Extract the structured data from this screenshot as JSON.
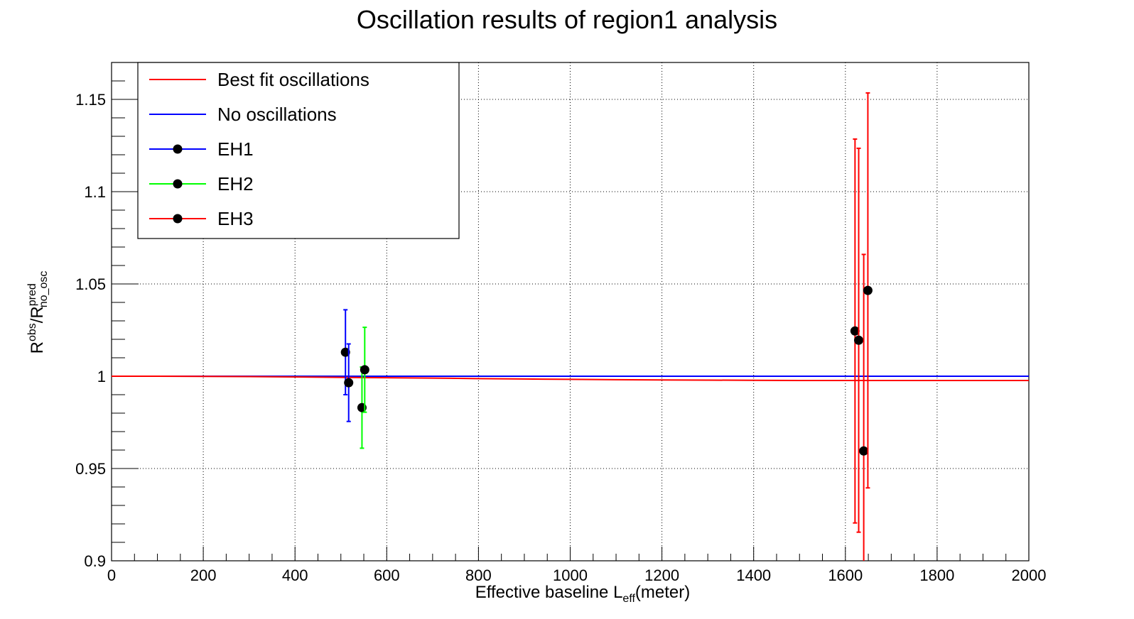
{
  "chart_data": {
    "type": "scatter",
    "title": "Oscillation results of region1 analysis",
    "xlabel": {
      "main": "Effective baseline L",
      "sub": "eff",
      "suffix": "(meter)"
    },
    "ylabel": {
      "r1": "R",
      "sup1": "obs",
      "slash": "/R",
      "sup2": "pred",
      "sub2": "no_osc"
    },
    "xlim": [
      0,
      2000
    ],
    "ylim": [
      0.9,
      1.17
    ],
    "x_ticks": [
      0,
      200,
      400,
      600,
      800,
      1000,
      1200,
      1400,
      1600,
      1800,
      2000
    ],
    "x_tick_labels": [
      "0",
      "200",
      "400",
      "600",
      "800",
      "1000",
      "1200",
      "1400",
      "1600",
      "1800",
      "2000"
    ],
    "y_ticks": [
      0.9,
      0.95,
      1,
      1.05,
      1.1,
      1.15
    ],
    "y_tick_labels": [
      "0.9",
      "0.95",
      "1",
      "1.05",
      "1.1",
      "1.15"
    ],
    "grid": true,
    "legend_position": "top-left",
    "legend": [
      {
        "label": "Best fit oscillations",
        "color": "#ff0000",
        "marker": false
      },
      {
        "label": "No oscillations",
        "color": "#0000ff",
        "marker": false
      },
      {
        "label": "EH1",
        "color": "#0000ff",
        "marker": true
      },
      {
        "label": "EH2",
        "color": "#00ff00",
        "marker": true
      },
      {
        "label": "EH3",
        "color": "#ff0000",
        "marker": true
      }
    ],
    "lines": [
      {
        "name": "No oscillations",
        "color": "#0000ff",
        "x": [
          0,
          2000
        ],
        "y": [
          1.0,
          1.0
        ]
      },
      {
        "name": "Best fit oscillations",
        "color": "#ff0000",
        "x": [
          0,
          100,
          200,
          300,
          400,
          500,
          600,
          700,
          800,
          900,
          1000,
          1100,
          1200,
          1300,
          1400,
          1500,
          1600,
          1700,
          1800,
          1900,
          2000
        ],
        "y": [
          1.0,
          1.0,
          0.9999,
          0.9998,
          0.9996,
          0.9994,
          0.9992,
          0.999,
          0.9987,
          0.9985,
          0.9983,
          0.9981,
          0.998,
          0.9979,
          0.9978,
          0.9977,
          0.9977,
          0.9977,
          0.9977,
          0.9977,
          0.9977
        ]
      }
    ],
    "series": [
      {
        "name": "EH1",
        "color": "#0000ff",
        "points": [
          {
            "x": 510,
            "y": 1.013,
            "err": 0.023
          },
          {
            "x": 517,
            "y": 0.9965,
            "err": 0.021
          }
        ]
      },
      {
        "name": "EH2",
        "color": "#00ff00",
        "points": [
          {
            "x": 546,
            "y": 0.983,
            "err": 0.022
          },
          {
            "x": 552,
            "y": 1.0035,
            "err": 0.023
          }
        ]
      },
      {
        "name": "EH3",
        "color": "#ff0000",
        "points": [
          {
            "x": 1621,
            "y": 1.0245,
            "err": 0.104
          },
          {
            "x": 1629,
            "y": 1.0195,
            "err": 0.104
          },
          {
            "x": 1640,
            "y": 0.9595,
            "err": 0.1065
          },
          {
            "x": 1649,
            "y": 1.0465,
            "err": 0.107
          }
        ]
      }
    ]
  }
}
